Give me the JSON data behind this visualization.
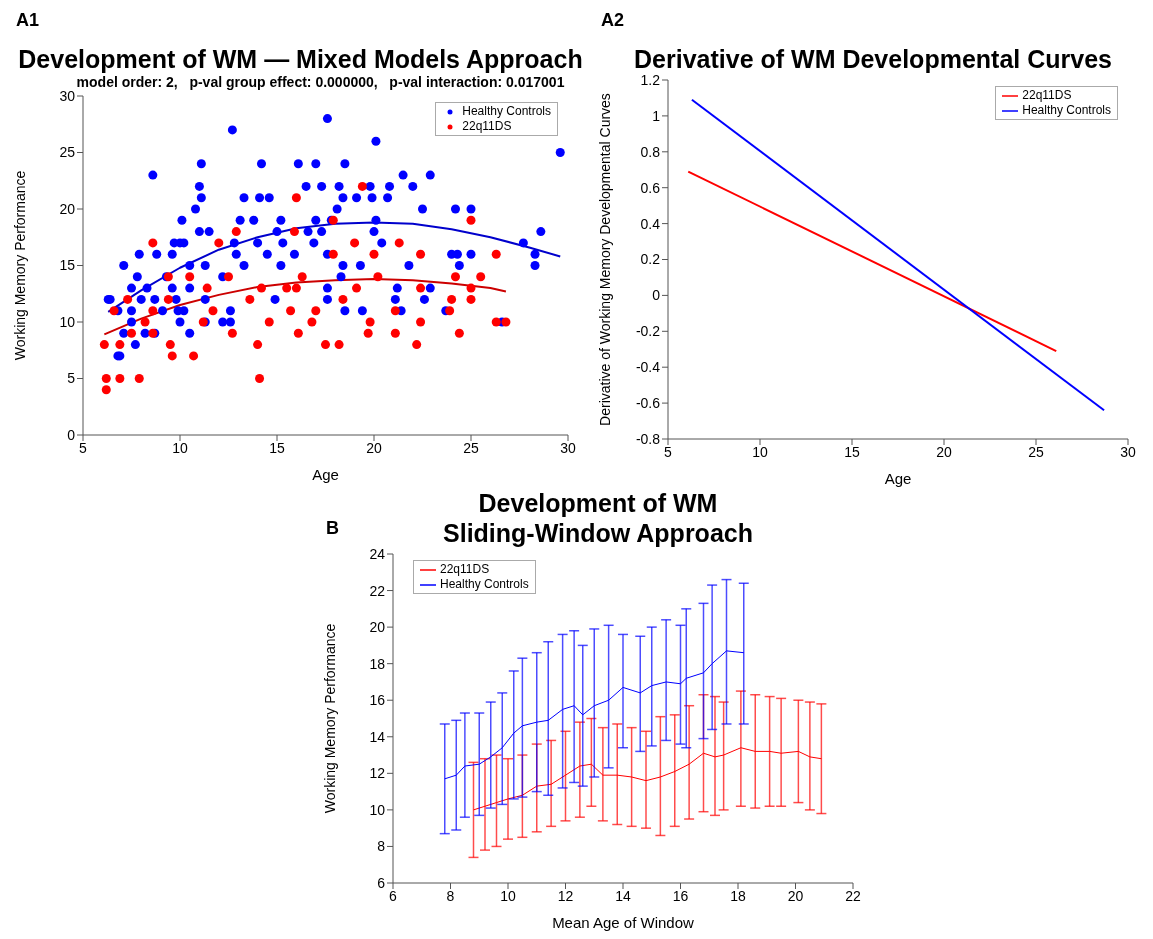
{
  "chart_data": [
    {
      "type": "scatter",
      "title": "Development of WM — Mixed Models Approach",
      "subtitle": "model order: 2,   p-val group effect: 0.000000,   p-val interaction: 0.017001",
      "xlabel": "Age",
      "ylabel": "Working Memory Performance",
      "annotations": [
        "A1"
      ],
      "xlim": [
        5,
        30
      ],
      "xticks": [
        5,
        10,
        15,
        20,
        25,
        30
      ],
      "ylim": [
        0,
        30
      ],
      "yticks": [
        0,
        5,
        10,
        15,
        20,
        25,
        30
      ],
      "legend": "top right",
      "line_style": "solid",
      "series": [
        {
          "name": "Healthy Controls",
          "color": "#0000ff",
          "marker": "circle",
          "x": [
            17.6,
            12.7,
            20.1,
            29.6,
            11.1,
            14.2,
            16.1,
            17,
            18.5,
            8.6,
            21.5,
            22.9,
            11,
            16.5,
            17.3,
            18.2,
            19.8,
            20.8,
            22,
            11.1,
            13.3,
            14.1,
            14.6,
            18.4,
            19.1,
            19.9,
            20.7,
            10.8,
            18.1,
            22.5,
            24.2,
            25,
            10.1,
            13.1,
            13.8,
            15.2,
            17,
            17.8,
            20.1,
            11,
            11.5,
            15,
            16.6,
            17.3,
            20,
            28.6,
            9.7,
            10,
            10.2,
            12,
            12.8,
            14,
            15.3,
            16.9,
            20.4,
            27.7,
            7.9,
            8.8,
            9.6,
            12.9,
            14.5,
            15.9,
            17.6,
            24,
            24.3,
            25,
            28.3,
            7.1,
            10.5,
            11.3,
            13.3,
            15.2,
            18.4,
            19.3,
            21.8,
            24.4,
            28.3,
            7.8,
            9.3,
            12.2,
            18.3,
            7.5,
            8.3,
            9.6,
            10.5,
            17.6,
            21.2,
            22.9,
            6.3,
            6.4,
            8,
            8.7,
            9.8,
            11.3,
            14.9,
            17.6,
            21.1,
            22.6,
            6.8,
            7.5,
            9.1,
            9.9,
            10.2,
            12.6,
            18.5,
            19.4,
            21.4,
            23.7,
            7.5,
            10,
            11.3,
            12.2,
            12.6,
            26.6,
            7.1,
            8.2,
            8.7,
            10.5,
            7.7,
            6.8,
            6.9
          ],
          "values": [
            28,
            27,
            26,
            25,
            24,
            24,
            24,
            24,
            24,
            23,
            23,
            23,
            22,
            22,
            22,
            22,
            22,
            22,
            22,
            21,
            21,
            21,
            21,
            21,
            21,
            21,
            21,
            20,
            20,
            20,
            20,
            20,
            19,
            19,
            19,
            19,
            19,
            19,
            19,
            18,
            18,
            18,
            18,
            18,
            18,
            18,
            17,
            17,
            17,
            null,
            17,
            17,
            17,
            17,
            17,
            17,
            16,
            16,
            16,
            16,
            16,
            16,
            16,
            16,
            16,
            16,
            16,
            15,
            15,
            15,
            15,
            15,
            15,
            15,
            15,
            15,
            15,
            14,
            14,
            14,
            14,
            13,
            13,
            13,
            13,
            13,
            13,
            13,
            12,
            12,
            12,
            12,
            12,
            12,
            12,
            12,
            12,
            12,
            11,
            11,
            11,
            11,
            11,
            11,
            11,
            11,
            11,
            11,
            10,
            10,
            10,
            10,
            10,
            10,
            9,
            9,
            9,
            9,
            8,
            7,
            7
          ]
        },
        {
          "name": "22q11DS",
          "color": "#ff0000",
          "marker": "circle",
          "x": [
            16,
            19.4,
            17.9,
            25,
            8.6,
            15.9,
            12.9,
            12,
            19,
            21.3,
            17.9,
            20,
            22.4,
            26.3,
            9.4,
            10.5,
            12.5,
            16.3,
            20.2,
            24.2,
            25.5,
            11.4,
            14.2,
            15.5,
            16,
            19.1,
            22.4,
            25,
            7.3,
            9.4,
            13.6,
            18.4,
            24,
            25,
            6.6,
            8.6,
            11.7,
            15.7,
            17,
            21.1,
            23.9,
            8.2,
            11.2,
            14.6,
            16.8,
            19.8,
            22.4,
            26.3,
            26.8,
            7.5,
            8.6,
            12.7,
            16.1,
            19.7,
            21.1,
            24.4,
            6.1,
            6.9,
            9.5,
            14,
            17.5,
            18.2,
            22.2,
            9.6,
            10.7,
            6.2,
            6.9,
            7.9,
            14.1,
            6.2
          ],
          "values": [
            21,
            22,
            19,
            19,
            17,
            18,
            18,
            17,
            17,
            17,
            16,
            16,
            16,
            16,
            14,
            14,
            14,
            14,
            14,
            14,
            14,
            13,
            13,
            13,
            13,
            13,
            13,
            13,
            12,
            12,
            12,
            12,
            12,
            12,
            11,
            11,
            11,
            11,
            11,
            11,
            11,
            10,
            10,
            10,
            10,
            10,
            10,
            10,
            10,
            9,
            9,
            9,
            9,
            9,
            9,
            9,
            8,
            8,
            8,
            8,
            8,
            8,
            8,
            7,
            7,
            5,
            5,
            5,
            5,
            4
          ]
        },
        {
          "type": "line",
          "color": "#0000cc",
          "x": [
            6.3,
            8,
            10,
            12,
            14,
            16,
            18,
            20,
            22,
            24,
            26,
            28,
            29.6
          ],
          "marker": "none",
          "values": [
            10.9,
            12.8,
            14.8,
            16.4,
            17.5,
            18.3,
            18.7,
            18.8,
            18.7,
            18.2,
            17.5,
            16.6,
            15.8
          ]
        },
        {
          "type": "line",
          "color": "#cc0000",
          "x": [
            6.1,
            8,
            10,
            12,
            14,
            16,
            18,
            20,
            22,
            24,
            26,
            26.8
          ],
          "marker": "none",
          "values": [
            8.9,
            10.3,
            11.5,
            12.4,
            13.1,
            13.5,
            13.7,
            13.8,
            13.7,
            13.4,
            13,
            12.7
          ]
        }
      ]
    },
    {
      "type": "line",
      "title": "Derivative of WM Developmental Curves",
      "xlabel": "Age",
      "ylabel": "Derivative of Working Memory Developmental Curves",
      "annotations": [
        "A2"
      ],
      "xlim": [
        5,
        30
      ],
      "xticks": [
        5,
        10,
        15,
        20,
        25,
        30
      ],
      "ylim": [
        -0.8,
        1.2
      ],
      "yticks": [
        -0.8,
        -0.6,
        -0.4,
        -0.2,
        0,
        0.2,
        0.4,
        0.6,
        0.8,
        1,
        1.2
      ],
      "legend": "top right",
      "line_style": "solid",
      "series": [
        {
          "name": "22q11DS",
          "color": "#ff0000",
          "x": [
            6.1,
            26.1
          ],
          "values": [
            0.69,
            -0.31
          ]
        },
        {
          "name": "Healthy Controls",
          "color": "#0000ff",
          "x": [
            6.3,
            28.7
          ],
          "values": [
            1.09,
            -0.64
          ]
        }
      ]
    },
    {
      "type": "line",
      "title": "Development of WM\nSliding-Window Approach",
      "xlabel": "Mean Age of Window",
      "ylabel": "Working Memory Performance",
      "annotations": [
        "B"
      ],
      "xlim": [
        6,
        22
      ],
      "xticks": [
        6,
        8,
        10,
        12,
        14,
        16,
        18,
        20,
        22
      ],
      "ylim": [
        6,
        24
      ],
      "yticks": [
        6,
        8,
        10,
        12,
        14,
        16,
        18,
        20,
        22,
        24
      ],
      "legend": "top left",
      "line_style": "solid",
      "series": [
        {
          "name": "22q11DS",
          "color": "#ff0000",
          "x": [
            8.8,
            9.2,
            9.6,
            10,
            10.5,
            11,
            11.5,
            12,
            12.5,
            12.9,
            13.3,
            13.8,
            14.3,
            14.8,
            15.3,
            15.8,
            16.3,
            16.8,
            17.2,
            17.5,
            18.1,
            18.6,
            19.1,
            19.5,
            20.1,
            20.5,
            20.9
          ],
          "values": [
            10,
            10.2,
            10.4,
            10.6,
            10.8,
            11.3,
            11.4,
            11.9,
            12.4,
            12.5,
            11.9,
            11.9,
            11.8,
            11.6,
            11.8,
            12.1,
            12.5,
            13.1,
            12.9,
            13,
            13.4,
            13.2,
            13.2,
            13.1,
            13.2,
            12.9,
            12.8
          ],
          "errors": [
            [
              7.4,
              12.6
            ],
            [
              7.8,
              12.8
            ],
            [
              8,
              13
            ],
            [
              8.4,
              12.8
            ],
            [
              8.5,
              13
            ],
            [
              8.8,
              13.6
            ],
            [
              9.1,
              13.8
            ],
            [
              9.4,
              14.3
            ],
            [
              9.6,
              14.8
            ],
            [
              10.2,
              15
            ],
            [
              9.4,
              14.5
            ],
            [
              9.2,
              14.7
            ],
            [
              9.1,
              14.5
            ],
            [
              9,
              14.3
            ],
            [
              8.6,
              15.1
            ],
            [
              9.1,
              15.2
            ],
            [
              9.5,
              15.7
            ],
            [
              9.9,
              16.3
            ],
            [
              9.7,
              16.2
            ],
            [
              10,
              15.9
            ],
            [
              10.2,
              16.5
            ],
            [
              10.1,
              16.3
            ],
            [
              10.2,
              16.2
            ],
            [
              10.2,
              16.1
            ],
            [
              10.4,
              16
            ],
            [
              10,
              15.9
            ],
            [
              9.8,
              15.8
            ]
          ]
        },
        {
          "name": "Healthy Controls",
          "color": "#0000ff",
          "x": [
            7.8,
            8.2,
            8.5,
            9,
            9.4,
            9.8,
            10.2,
            10.5,
            11,
            11.4,
            11.9,
            12.3,
            12.6,
            13,
            13.5,
            14,
            14.6,
            15,
            15.5,
            16,
            16.2,
            16.8,
            17.1,
            17.6,
            18.2
          ],
          "values": [
            11.7,
            11.9,
            12.4,
            12.5,
            12.9,
            13.4,
            14.2,
            14.6,
            14.8,
            14.9,
            15.5,
            15.7,
            15.2,
            15.7,
            16,
            16.7,
            16.4,
            16.8,
            17,
            16.9,
            17.2,
            17.5,
            18,
            18.7,
            18.6
          ],
          "errors": [
            [
              8.7,
              14.7
            ],
            [
              8.9,
              14.9
            ],
            [
              9.6,
              15.3
            ],
            [
              9.7,
              15.3
            ],
            [
              10.1,
              15.9
            ],
            [
              10.3,
              16.4
            ],
            [
              10.6,
              17.6
            ],
            [
              10.7,
              18.3
            ],
            [
              11,
              18.6
            ],
            [
              10.8,
              19.2
            ],
            [
              11.2,
              19.6
            ],
            [
              11.5,
              19.8
            ],
            [
              11.3,
              19
            ],
            [
              11.8,
              19.9
            ],
            [
              12.3,
              20.1
            ],
            [
              13.4,
              19.6
            ],
            [
              13.2,
              19.5
            ],
            [
              13.5,
              20
            ],
            [
              13.8,
              20.4
            ],
            [
              13.6,
              20.1
            ],
            [
              13.4,
              21
            ],
            [
              13.9,
              21.3
            ],
            [
              14.4,
              22.3
            ],
            [
              14.7,
              22.6
            ],
            [
              14.7,
              22.4
            ]
          ]
        }
      ]
    }
  ]
}
